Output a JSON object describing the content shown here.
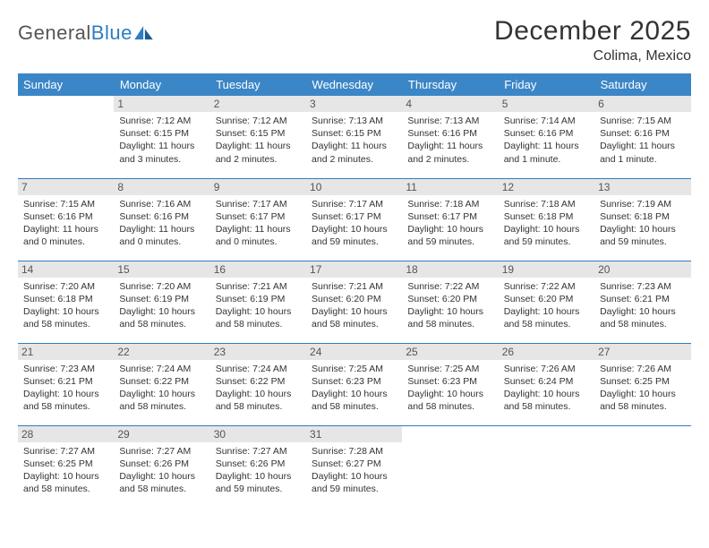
{
  "logo": {
    "part1": "General",
    "part2": "Blue"
  },
  "title": "December 2025",
  "location": "Colima, Mexico",
  "colors": {
    "header_bg": "#3b86c6",
    "header_text": "#ffffff",
    "row_border": "#2d7dc0",
    "daynum_bg": "#e6e6e6",
    "daynum_text": "#555555",
    "body_text": "#333333",
    "logo_gray": "#555555",
    "logo_blue": "#2d7dc0",
    "page_bg": "#ffffff"
  },
  "weekdays": [
    "Sunday",
    "Monday",
    "Tuesday",
    "Wednesday",
    "Thursday",
    "Friday",
    "Saturday"
  ],
  "weeks": [
    [
      {
        "n": "",
        "sr": "",
        "ss": "",
        "dl": ""
      },
      {
        "n": "1",
        "sr": "Sunrise: 7:12 AM",
        "ss": "Sunset: 6:15 PM",
        "dl": "Daylight: 11 hours and 3 minutes."
      },
      {
        "n": "2",
        "sr": "Sunrise: 7:12 AM",
        "ss": "Sunset: 6:15 PM",
        "dl": "Daylight: 11 hours and 2 minutes."
      },
      {
        "n": "3",
        "sr": "Sunrise: 7:13 AM",
        "ss": "Sunset: 6:15 PM",
        "dl": "Daylight: 11 hours and 2 minutes."
      },
      {
        "n": "4",
        "sr": "Sunrise: 7:13 AM",
        "ss": "Sunset: 6:16 PM",
        "dl": "Daylight: 11 hours and 2 minutes."
      },
      {
        "n": "5",
        "sr": "Sunrise: 7:14 AM",
        "ss": "Sunset: 6:16 PM",
        "dl": "Daylight: 11 hours and 1 minute."
      },
      {
        "n": "6",
        "sr": "Sunrise: 7:15 AM",
        "ss": "Sunset: 6:16 PM",
        "dl": "Daylight: 11 hours and 1 minute."
      }
    ],
    [
      {
        "n": "7",
        "sr": "Sunrise: 7:15 AM",
        "ss": "Sunset: 6:16 PM",
        "dl": "Daylight: 11 hours and 0 minutes."
      },
      {
        "n": "8",
        "sr": "Sunrise: 7:16 AM",
        "ss": "Sunset: 6:16 PM",
        "dl": "Daylight: 11 hours and 0 minutes."
      },
      {
        "n": "9",
        "sr": "Sunrise: 7:17 AM",
        "ss": "Sunset: 6:17 PM",
        "dl": "Daylight: 11 hours and 0 minutes."
      },
      {
        "n": "10",
        "sr": "Sunrise: 7:17 AM",
        "ss": "Sunset: 6:17 PM",
        "dl": "Daylight: 10 hours and 59 minutes."
      },
      {
        "n": "11",
        "sr": "Sunrise: 7:18 AM",
        "ss": "Sunset: 6:17 PM",
        "dl": "Daylight: 10 hours and 59 minutes."
      },
      {
        "n": "12",
        "sr": "Sunrise: 7:18 AM",
        "ss": "Sunset: 6:18 PM",
        "dl": "Daylight: 10 hours and 59 minutes."
      },
      {
        "n": "13",
        "sr": "Sunrise: 7:19 AM",
        "ss": "Sunset: 6:18 PM",
        "dl": "Daylight: 10 hours and 59 minutes."
      }
    ],
    [
      {
        "n": "14",
        "sr": "Sunrise: 7:20 AM",
        "ss": "Sunset: 6:18 PM",
        "dl": "Daylight: 10 hours and 58 minutes."
      },
      {
        "n": "15",
        "sr": "Sunrise: 7:20 AM",
        "ss": "Sunset: 6:19 PM",
        "dl": "Daylight: 10 hours and 58 minutes."
      },
      {
        "n": "16",
        "sr": "Sunrise: 7:21 AM",
        "ss": "Sunset: 6:19 PM",
        "dl": "Daylight: 10 hours and 58 minutes."
      },
      {
        "n": "17",
        "sr": "Sunrise: 7:21 AM",
        "ss": "Sunset: 6:20 PM",
        "dl": "Daylight: 10 hours and 58 minutes."
      },
      {
        "n": "18",
        "sr": "Sunrise: 7:22 AM",
        "ss": "Sunset: 6:20 PM",
        "dl": "Daylight: 10 hours and 58 minutes."
      },
      {
        "n": "19",
        "sr": "Sunrise: 7:22 AM",
        "ss": "Sunset: 6:20 PM",
        "dl": "Daylight: 10 hours and 58 minutes."
      },
      {
        "n": "20",
        "sr": "Sunrise: 7:23 AM",
        "ss": "Sunset: 6:21 PM",
        "dl": "Daylight: 10 hours and 58 minutes."
      }
    ],
    [
      {
        "n": "21",
        "sr": "Sunrise: 7:23 AM",
        "ss": "Sunset: 6:21 PM",
        "dl": "Daylight: 10 hours and 58 minutes."
      },
      {
        "n": "22",
        "sr": "Sunrise: 7:24 AM",
        "ss": "Sunset: 6:22 PM",
        "dl": "Daylight: 10 hours and 58 minutes."
      },
      {
        "n": "23",
        "sr": "Sunrise: 7:24 AM",
        "ss": "Sunset: 6:22 PM",
        "dl": "Daylight: 10 hours and 58 minutes."
      },
      {
        "n": "24",
        "sr": "Sunrise: 7:25 AM",
        "ss": "Sunset: 6:23 PM",
        "dl": "Daylight: 10 hours and 58 minutes."
      },
      {
        "n": "25",
        "sr": "Sunrise: 7:25 AM",
        "ss": "Sunset: 6:23 PM",
        "dl": "Daylight: 10 hours and 58 minutes."
      },
      {
        "n": "26",
        "sr": "Sunrise: 7:26 AM",
        "ss": "Sunset: 6:24 PM",
        "dl": "Daylight: 10 hours and 58 minutes."
      },
      {
        "n": "27",
        "sr": "Sunrise: 7:26 AM",
        "ss": "Sunset: 6:25 PM",
        "dl": "Daylight: 10 hours and 58 minutes."
      }
    ],
    [
      {
        "n": "28",
        "sr": "Sunrise: 7:27 AM",
        "ss": "Sunset: 6:25 PM",
        "dl": "Daylight: 10 hours and 58 minutes."
      },
      {
        "n": "29",
        "sr": "Sunrise: 7:27 AM",
        "ss": "Sunset: 6:26 PM",
        "dl": "Daylight: 10 hours and 58 minutes."
      },
      {
        "n": "30",
        "sr": "Sunrise: 7:27 AM",
        "ss": "Sunset: 6:26 PM",
        "dl": "Daylight: 10 hours and 59 minutes."
      },
      {
        "n": "31",
        "sr": "Sunrise: 7:28 AM",
        "ss": "Sunset: 6:27 PM",
        "dl": "Daylight: 10 hours and 59 minutes."
      },
      {
        "n": "",
        "sr": "",
        "ss": "",
        "dl": ""
      },
      {
        "n": "",
        "sr": "",
        "ss": "",
        "dl": ""
      },
      {
        "n": "",
        "sr": "",
        "ss": "",
        "dl": ""
      }
    ]
  ]
}
